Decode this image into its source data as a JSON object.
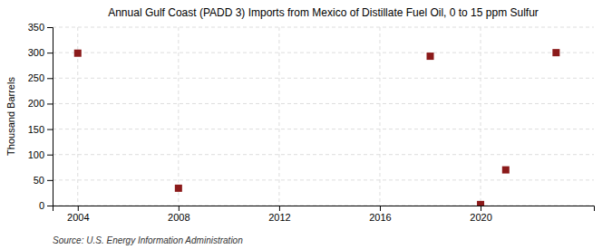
{
  "chart_data": {
    "type": "scatter",
    "title": "Annual Gulf Coast (PADD 3) Imports from Mexico of Distillate Fuel Oil, 0 to 15 ppm Sulfur",
    "ylabel": "Thousand Barrels",
    "source": "Source: U.S. Energy Information Administration",
    "x": [
      2004,
      2008,
      2018,
      2020,
      2021,
      2023
    ],
    "values": [
      299,
      34,
      293,
      2,
      70,
      300
    ],
    "color": "#8b1a1a",
    "marker": "square",
    "xlim": [
      2003.0,
      2024.5
    ],
    "ylim": [
      0,
      350
    ],
    "xticks": [
      2004,
      2008,
      2012,
      2016,
      2020
    ],
    "yticks": [
      0,
      50,
      100,
      150,
      200,
      250,
      300,
      350
    ],
    "grid": true
  }
}
